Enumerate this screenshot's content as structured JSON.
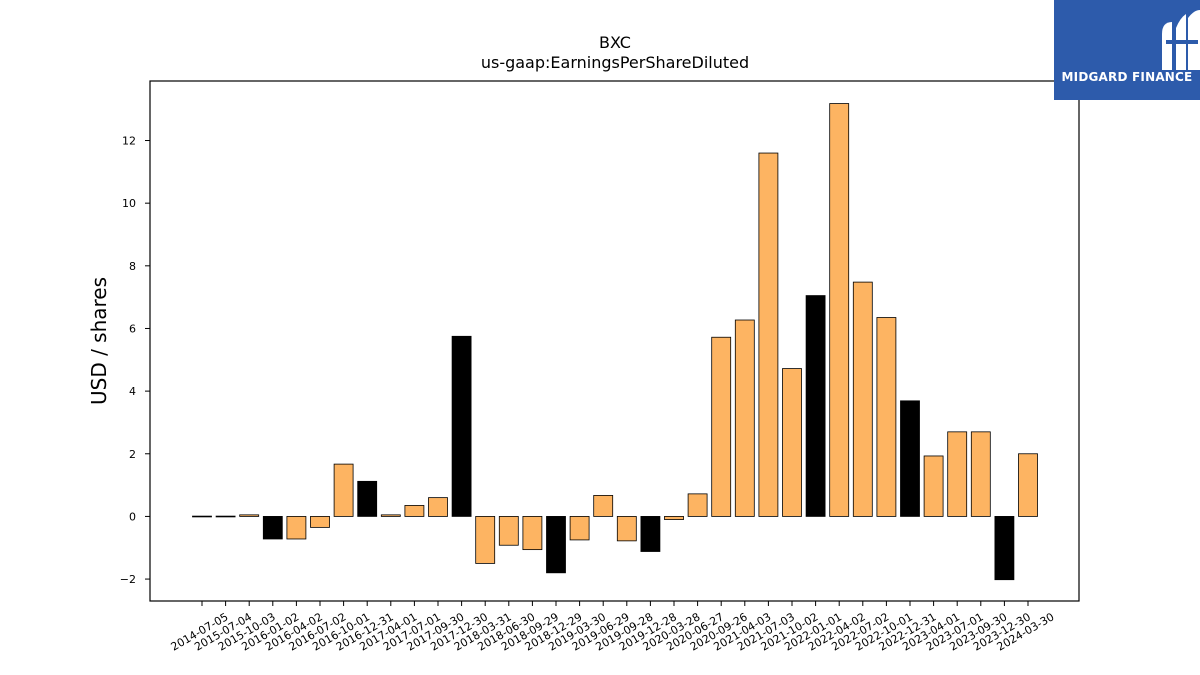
{
  "chart_data": {
    "type": "bar",
    "title": "BXC",
    "subtitle": "us-gaap:EarningsPerShareDiluted",
    "ylabel": "USD / shares",
    "xlabel": "",
    "ylim": [
      -2.7,
      13.9
    ],
    "yticks": [
      -2,
      0,
      2,
      4,
      6,
      8,
      10,
      12
    ],
    "grid": false,
    "colors": {
      "regular": "#fdb462",
      "highlight": "#000000",
      "edge": "#000000"
    },
    "categories": [
      "2014-07-05",
      "2015-07-04",
      "2015-10-03",
      "2016-01-02",
      "2016-04-02",
      "2016-07-02",
      "2016-10-01",
      "2016-12-31",
      "2017-04-01",
      "2017-07-01",
      "2017-09-30",
      "2017-12-30",
      "2018-03-31",
      "2018-06-30",
      "2018-09-29",
      "2018-12-29",
      "2019-03-30",
      "2019-06-29",
      "2019-09-28",
      "2019-12-28",
      "2020-03-28",
      "2020-06-27",
      "2020-09-26",
      "2021-04-03",
      "2021-07-03",
      "2021-10-02",
      "2022-01-01",
      "2022-04-02",
      "2022-07-02",
      "2022-10-01",
      "2022-12-31",
      "2023-04-01",
      "2023-07-01",
      "2023-09-30",
      "2023-12-30",
      "2024-03-30"
    ],
    "values": [
      0.01,
      0.01,
      0.05,
      -0.72,
      -0.72,
      -0.35,
      1.67,
      1.12,
      0.05,
      0.35,
      0.6,
      5.75,
      -1.5,
      -0.92,
      -1.06,
      -1.8,
      -0.75,
      0.67,
      -0.78,
      -1.12,
      -0.1,
      0.72,
      5.72,
      6.27,
      11.6,
      4.72,
      7.05,
      13.18,
      7.48,
      6.35,
      3.69,
      1.93,
      2.7,
      2.7,
      -2.02,
      2.0
    ],
    "highlight": [
      false,
      false,
      false,
      true,
      false,
      false,
      false,
      true,
      false,
      false,
      false,
      true,
      false,
      false,
      false,
      true,
      false,
      false,
      false,
      true,
      false,
      false,
      false,
      false,
      false,
      false,
      true,
      false,
      false,
      false,
      true,
      false,
      false,
      false,
      true,
      false
    ]
  },
  "logo": {
    "text": "MIDGARD FINANCE",
    "icon": "midgard-m-icon",
    "background": "#2d5bab"
  }
}
